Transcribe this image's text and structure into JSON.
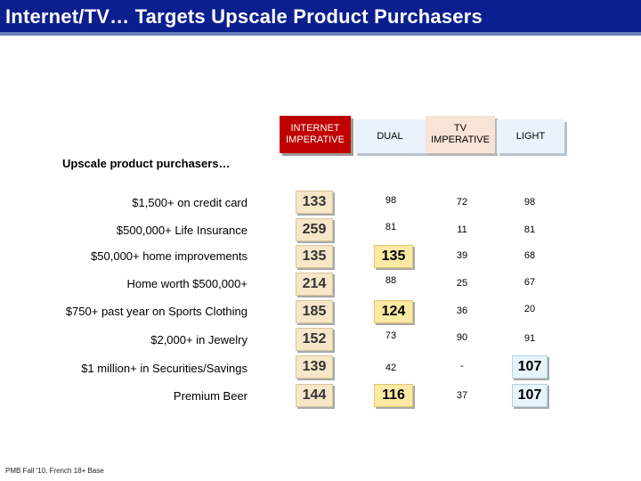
{
  "title": "Internet/TV… Targets Upscale Product Purchasers",
  "columns": {
    "internet": "INTERNET IMPERATIVE",
    "dual": "DUAL",
    "tv": "TV IMPERATIVE",
    "light": "LIGHT"
  },
  "section_label": "Upscale product purchasers…",
  "rows": [
    {
      "label": "$1,500+ on credit card",
      "internet": "133",
      "dual": "98",
      "tv": "72",
      "light": "98"
    },
    {
      "label": "$500,000+  Life Insurance",
      "internet": "259",
      "dual": "81",
      "tv": "11",
      "light": "81"
    },
    {
      "label": "$50,000+ home improvements",
      "internet": "135",
      "dual": "135",
      "tv": "39",
      "light": "68"
    },
    {
      "label": "Home worth $500,000+",
      "internet": "214",
      "dual": "88",
      "tv": "25",
      "light": "67"
    },
    {
      "label": "$750+ past year on Sports Clothing",
      "internet": "185",
      "dual": "124",
      "tv": "36",
      "light": "20"
    },
    {
      "label": "$2,000+ in Jewelry",
      "internet": "152",
      "dual": "73",
      "tv": "90",
      "light": "91"
    },
    {
      "label": "$1 million+ in Securities/Savings",
      "internet": "139",
      "dual": "42",
      "tv": "-",
      "light": "107"
    },
    {
      "label": "Premium Beer",
      "internet": "144",
      "dual": "116",
      "tv": "37",
      "light": "107"
    }
  ],
  "footnote": "PMB Fall '10, French 18+ Base"
}
